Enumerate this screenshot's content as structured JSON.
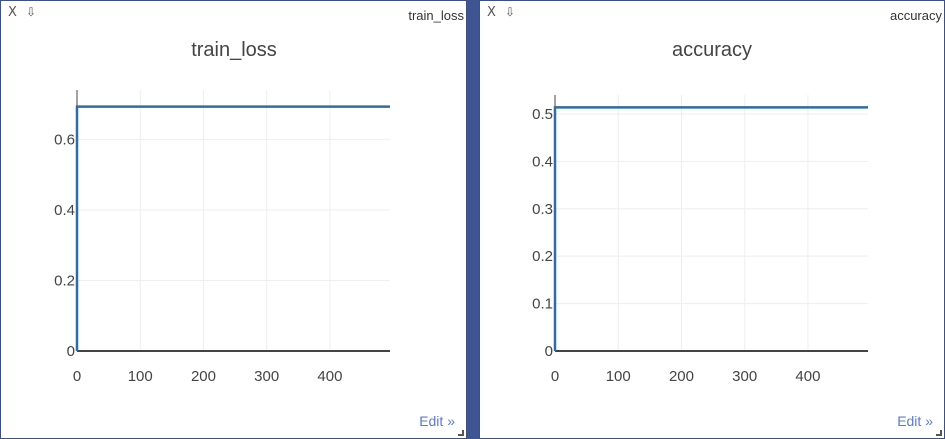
{
  "panes": [
    {
      "close_label": "X",
      "download_label": "⇩",
      "tag": "train_loss",
      "edit_label": "Edit »"
    },
    {
      "close_label": "X",
      "download_label": "⇩",
      "tag": "accuracy",
      "edit_label": "Edit »"
    }
  ],
  "colors": {
    "line": "#2e6da4",
    "grid": "#eeeeee",
    "axis": "#444444",
    "divider": "#3f5493",
    "link": "#5a7bd0"
  },
  "chart_data": [
    {
      "type": "line",
      "title": "train_loss",
      "xlabel": "",
      "ylabel": "",
      "xlim": [
        0,
        495
      ],
      "ylim": [
        0,
        0.74
      ],
      "x_ticks": [
        0,
        100,
        200,
        300,
        400
      ],
      "x_tick_labels": [
        "0",
        "100",
        "200",
        "300",
        "400"
      ],
      "y_ticks": [
        0,
        0.2,
        0.4,
        0.6
      ],
      "y_tick_labels": [
        "0",
        "0.2",
        "0.4",
        "0.6"
      ],
      "grid": true,
      "series": [
        {
          "x": [
            0,
            0,
            495
          ],
          "y": [
            0,
            0.693,
            0.693
          ]
        }
      ]
    },
    {
      "type": "line",
      "title": "accuracy",
      "xlabel": "",
      "ylabel": "",
      "xlim": [
        0,
        495
      ],
      "ylim": [
        0,
        0.54
      ],
      "x_ticks": [
        0,
        100,
        200,
        300,
        400
      ],
      "x_tick_labels": [
        "0",
        "100",
        "200",
        "300",
        "400"
      ],
      "y_ticks": [
        0,
        0.1,
        0.2,
        0.3,
        0.4,
        0.5
      ],
      "y_tick_labels": [
        "0",
        "0.1",
        "0.2",
        "0.3",
        "0.4",
        "0.5"
      ],
      "grid": true,
      "series": [
        {
          "x": [
            0,
            0,
            495
          ],
          "y": [
            0,
            0.514,
            0.514
          ]
        }
      ]
    }
  ]
}
